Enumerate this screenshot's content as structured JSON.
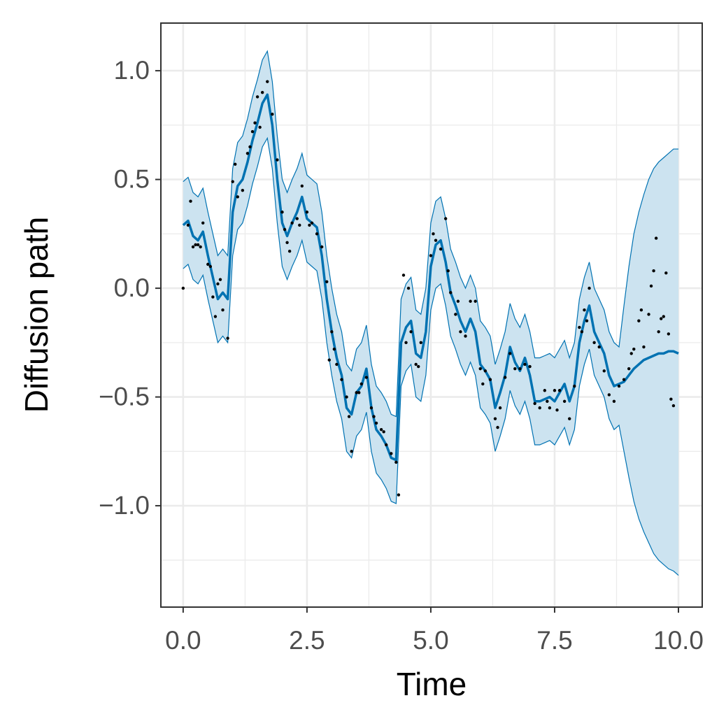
{
  "chart_data": {
    "type": "line",
    "xlabel": "Time",
    "ylabel": "Diffusion path",
    "xlim": [
      -0.45,
      10.48
    ],
    "ylim": [
      -1.466,
      1.219
    ],
    "xticks": [
      {
        "value": 0,
        "label": "0.0"
      },
      2.5,
      {
        "value": 5,
        "label": "5.0"
      },
      7.5,
      {
        "value": 10,
        "label": "10.0"
      }
    ],
    "yticks": [
      {
        "value": 1,
        "label": "1.0"
      },
      0.5,
      {
        "value": 0,
        "label": "0.0"
      },
      {
        "value": -0.5,
        "label": "−0.5"
      },
      {
        "value": -1,
        "label": "−1.0"
      }
    ],
    "x_minor_ticks": [
      1.25,
      3.75,
      6.25,
      8.75
    ],
    "y_minor_ticks": [
      -1.25,
      -0.75,
      -0.25,
      0.25,
      0.75
    ],
    "grid": true,
    "x": [
      0,
      0.1,
      0.2,
      0.3,
      0.4,
      0.5,
      0.6,
      0.7,
      0.8,
      0.9,
      1,
      1.1,
      1.2,
      1.3,
      1.4,
      1.5,
      1.6,
      1.7,
      1.8,
      1.9,
      2,
      2.1,
      2.2,
      2.3,
      2.4,
      2.5,
      2.6,
      2.7,
      2.8,
      2.9,
      3,
      3.1,
      3.2,
      3.3,
      3.4,
      3.5,
      3.6,
      3.7,
      3.8,
      3.9,
      4,
      4.1,
      4.2,
      4.3,
      4.4,
      4.5,
      4.6,
      4.7,
      4.8,
      4.9,
      5,
      5.1,
      5.2,
      5.3,
      5.4,
      5.5,
      5.6,
      5.7,
      5.8,
      5.9,
      6,
      6.1,
      6.2,
      6.3,
      6.4,
      6.5,
      6.6,
      6.7,
      6.8,
      6.9,
      7,
      7.1,
      7.2,
      7.3,
      7.4,
      7.5,
      7.6,
      7.7,
      7.8,
      7.9,
      8,
      8.1,
      8.2,
      8.3,
      8.4,
      8.5,
      8.6,
      8.7,
      8.8,
      8.9,
      9,
      9.1,
      9.2,
      9.3,
      9.4,
      9.5,
      9.6,
      9.7,
      9.8,
      9.9,
      10
    ],
    "line": {
      "color": "#0072b2",
      "values": [
        0.29,
        0.31,
        0.24,
        0.22,
        0.26,
        0.15,
        0.05,
        -0.05,
        -0.02,
        -0.05,
        0.35,
        0.47,
        0.5,
        0.58,
        0.68,
        0.76,
        0.85,
        0.89,
        0.75,
        0.5,
        0.3,
        0.24,
        0.3,
        0.35,
        0.42,
        0.32,
        0.3,
        0.28,
        0.15,
        -0.05,
        -0.2,
        -0.32,
        -0.4,
        -0.55,
        -0.58,
        -0.48,
        -0.45,
        -0.37,
        -0.55,
        -0.65,
        -0.68,
        -0.72,
        -0.78,
        -0.79,
        -0.25,
        -0.18,
        -0.15,
        -0.3,
        -0.32,
        -0.2,
        0.1,
        0.2,
        0.22,
        0.12,
        -0.02,
        -0.08,
        -0.15,
        -0.2,
        -0.14,
        -0.2,
        -0.35,
        -0.38,
        -0.42,
        -0.55,
        -0.48,
        -0.4,
        -0.27,
        -0.34,
        -0.38,
        -0.32,
        -0.4,
        -0.52,
        -0.52,
        -0.51,
        -0.5,
        -0.52,
        -0.48,
        -0.44,
        -0.52,
        -0.45,
        -0.25,
        -0.15,
        -0.08,
        -0.2,
        -0.25,
        -0.3,
        -0.4,
        -0.45,
        -0.44,
        -0.43,
        -0.4,
        -0.37,
        -0.35,
        -0.33,
        -0.32,
        -0.31,
        -0.3,
        -0.3,
        -0.29,
        -0.29,
        -0.3
      ]
    },
    "band": {
      "color": "#0072b2",
      "fill": "#cce3f0",
      "upper": [
        0.49,
        0.51,
        0.44,
        0.42,
        0.46,
        0.35,
        0.25,
        0.15,
        0.18,
        0.15,
        0.55,
        0.67,
        0.7,
        0.78,
        0.88,
        0.96,
        1.05,
        1.09,
        0.95,
        0.7,
        0.5,
        0.44,
        0.5,
        0.55,
        0.62,
        0.52,
        0.5,
        0.48,
        0.35,
        0.15,
        0.0,
        -0.12,
        -0.2,
        -0.35,
        -0.38,
        -0.28,
        -0.25,
        -0.17,
        -0.35,
        -0.45,
        -0.48,
        -0.52,
        -0.58,
        -0.59,
        -0.05,
        0.02,
        0.05,
        -0.1,
        -0.12,
        0.0,
        0.3,
        0.4,
        0.42,
        0.32,
        0.18,
        0.12,
        0.05,
        0.0,
        0.06,
        0.0,
        -0.15,
        -0.18,
        -0.22,
        -0.35,
        -0.28,
        -0.2,
        -0.07,
        -0.14,
        -0.18,
        -0.12,
        -0.2,
        -0.32,
        -0.32,
        -0.31,
        -0.3,
        -0.32,
        -0.28,
        -0.24,
        -0.32,
        -0.25,
        -0.05,
        0.05,
        0.12,
        0.0,
        -0.05,
        -0.1,
        -0.2,
        -0.25,
        -0.27,
        -0.08,
        0.1,
        0.25,
        0.35,
        0.43,
        0.5,
        0.55,
        0.58,
        0.6,
        0.62,
        0.64,
        0.64
      ],
      "lower": [
        0.09,
        0.11,
        0.04,
        0.02,
        0.06,
        -0.05,
        -0.15,
        -0.25,
        -0.22,
        -0.25,
        0.15,
        0.27,
        0.3,
        0.38,
        0.48,
        0.56,
        0.65,
        0.69,
        0.55,
        0.3,
        0.1,
        0.04,
        0.1,
        0.15,
        0.22,
        0.12,
        0.1,
        0.08,
        -0.05,
        -0.25,
        -0.4,
        -0.52,
        -0.6,
        -0.75,
        -0.78,
        -0.68,
        -0.65,
        -0.57,
        -0.75,
        -0.85,
        -0.88,
        -0.92,
        -0.98,
        -0.99,
        -0.45,
        -0.38,
        -0.35,
        -0.5,
        -0.52,
        -0.4,
        -0.1,
        0.0,
        0.02,
        -0.08,
        -0.22,
        -0.28,
        -0.35,
        -0.4,
        -0.34,
        -0.4,
        -0.55,
        -0.58,
        -0.62,
        -0.75,
        -0.68,
        -0.6,
        -0.47,
        -0.54,
        -0.58,
        -0.52,
        -0.6,
        -0.72,
        -0.72,
        -0.71,
        -0.7,
        -0.72,
        -0.68,
        -0.64,
        -0.72,
        -0.65,
        -0.45,
        -0.35,
        -0.28,
        -0.4,
        -0.45,
        -0.5,
        -0.6,
        -0.65,
        -0.63,
        -0.75,
        -0.87,
        -0.98,
        -1.06,
        -1.12,
        -1.17,
        -1.22,
        -1.25,
        -1.27,
        -1.29,
        -1.3,
        -1.32
      ]
    },
    "points": {
      "color": "#000000",
      "x": [
        0,
        0.1,
        0.15,
        0.2,
        0.25,
        0.3,
        0.35,
        0.4,
        0.5,
        0.55,
        0.6,
        0.65,
        0.7,
        0.75,
        0.8,
        0.9,
        1,
        1.05,
        1.1,
        1.2,
        1.3,
        1.35,
        1.4,
        1.45,
        1.5,
        1.55,
        1.6,
        1.7,
        1.8,
        1.9,
        2,
        2.05,
        2.1,
        2.15,
        2.2,
        2.3,
        2.35,
        2.4,
        2.5,
        2.55,
        2.6,
        2.7,
        2.8,
        2.9,
        2.95,
        3,
        3.05,
        3.1,
        3.2,
        3.3,
        3.35,
        3.4,
        3.5,
        3.55,
        3.6,
        3.7,
        3.8,
        3.85,
        3.9,
        4,
        4.05,
        4.1,
        4.2,
        4.3,
        4.35,
        4.45,
        4.5,
        4.55,
        4.6,
        4.7,
        4.75,
        4.8,
        5,
        5.05,
        5.1,
        5.2,
        5.3,
        5.35,
        5.4,
        5.5,
        5.55,
        5.6,
        5.7,
        5.8,
        5.9,
        6,
        6.05,
        6.1,
        6.2,
        6.3,
        6.35,
        6.4,
        6.5,
        6.6,
        6.7,
        6.8,
        6.9,
        7,
        7.1,
        7.2,
        7.3,
        7.35,
        7.4,
        7.5,
        7.55,
        7.6,
        7.7,
        7.8,
        7.9,
        8,
        8.05,
        8.1,
        8.15,
        8.2,
        8.3,
        8.4,
        8.5,
        8.6,
        8.7,
        8.8,
        8.9,
        9,
        9.05,
        9.1,
        9.2,
        9.25,
        9.3,
        9.4,
        9.45,
        9.5,
        9.55,
        9.6,
        9.65,
        9.7,
        9.75,
        9.8,
        9.85,
        9.9
      ],
      "y": [
        0,
        0.29,
        0.4,
        0.19,
        0.2,
        0.2,
        0.19,
        0.3,
        0.11,
        0.1,
        -0.04,
        -0.13,
        0.02,
        0.04,
        -0.1,
        -0.23,
        0.49,
        0.57,
        0.42,
        0.45,
        0.62,
        0.65,
        0.72,
        0.76,
        0.88,
        0.74,
        0.9,
        0.95,
        0.8,
        0.59,
        0.35,
        0.27,
        0.21,
        0.17,
        0.3,
        0.32,
        0.29,
        0.47,
        0.35,
        0.29,
        0.3,
        0.25,
        0.19,
        0.03,
        -0.33,
        -0.2,
        -0.28,
        -0.35,
        -0.42,
        -0.5,
        -0.59,
        -0.75,
        -0.48,
        -0.48,
        -0.44,
        -0.41,
        -0.55,
        -0.59,
        -0.62,
        -0.65,
        -0.66,
        -0.72,
        -0.76,
        -0.8,
        -0.95,
        0.06,
        -0.25,
        0,
        -0.2,
        -0.35,
        -0.36,
        -0.25,
        0.15,
        0.25,
        0.22,
        0.18,
        0.32,
        0.08,
        -0.02,
        -0.12,
        -0.06,
        -0.2,
        -0.22,
        -0.06,
        -0.06,
        -0.37,
        -0.44,
        -0.38,
        -0.42,
        -0.6,
        -0.64,
        -0.55,
        -0.41,
        -0.3,
        -0.37,
        -0.37,
        -0.35,
        -0.36,
        -0.53,
        -0.55,
        -0.47,
        -0.52,
        -0.55,
        -0.47,
        -0.56,
        -0.47,
        -0.52,
        -0.6,
        -0.45,
        -0.18,
        -0.2,
        -0.1,
        -0.15,
        0,
        -0.25,
        -0.27,
        -0.38,
        -0.49,
        -0.52,
        -0.45,
        -0.42,
        -0.37,
        -0.3,
        -0.28,
        -0.15,
        -0.1,
        -0.27,
        -0.12,
        0.01,
        0.08,
        0.23,
        -0.2,
        -0.14,
        -0.13,
        0.07,
        -0.21,
        -0.51,
        -0.54
      ]
    }
  }
}
